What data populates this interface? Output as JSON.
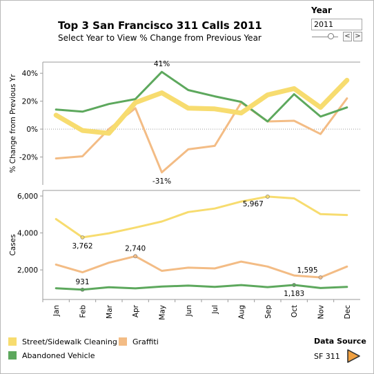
{
  "header": {
    "title": "Top 3 San Francisco 311 Calls 2011",
    "subtitle": "Select Year to View % Change from Previous Year"
  },
  "year_filter": {
    "label": "Year",
    "selected": "2011",
    "prev_label": "<",
    "next_label": ">"
  },
  "legend": {
    "items": [
      {
        "label": "Street/Sidewalk Cleaning",
        "color": "#f7dc6f"
      },
      {
        "label": "Graffiti",
        "color": "#f3bc85"
      },
      {
        "label": "Abandoned Vehicle",
        "color": "#5da85d"
      }
    ]
  },
  "data_source": {
    "title": "Data Source",
    "link_label": "SF 311",
    "play_icon": "play-triangle-icon",
    "play_color": "#f0a040"
  },
  "chart_data": [
    {
      "type": "line",
      "ylabel": "% Change from Previous Yr",
      "ylim": [
        -40,
        48
      ],
      "yticks": [
        -20,
        0,
        20,
        40
      ],
      "ytick_labels": [
        "-20%",
        "0%",
        "20%",
        "40%"
      ],
      "zero_line": "dotted",
      "categories": [
        "Jan",
        "Feb",
        "Mar",
        "Apr",
        "May",
        "Jun",
        "Jul",
        "Aug",
        "Sep",
        "Oct",
        "Nov",
        "Dec"
      ],
      "series": [
        {
          "name": "Graffiti",
          "color": "#f3bc85",
          "values": [
            -21,
            -19.5,
            0,
            15,
            -31,
            -14.5,
            -12,
            19,
            5.5,
            6,
            -3.5,
            22
          ]
        },
        {
          "name": "Abandoned Vehicle",
          "color": "#5da85d",
          "values": [
            14,
            12.5,
            18,
            21.5,
            41,
            28,
            23.5,
            19.5,
            5.5,
            25,
            9,
            15.5
          ]
        },
        {
          "name": "Street/Sidewalk Cleaning",
          "color": "#f7dc6f",
          "values": [
            10,
            -1,
            -3,
            19,
            26,
            15,
            14.5,
            11.5,
            24.5,
            29,
            15.5,
            35
          ]
        }
      ],
      "annotations": [
        {
          "label": "41%",
          "category": "May",
          "value": 41,
          "pos": "above"
        },
        {
          "label": "-31%",
          "category": "May",
          "value": -31,
          "pos": "below"
        }
      ]
    },
    {
      "type": "line",
      "ylabel": "Cases",
      "ylim": [
        400,
        6300
      ],
      "yticks": [
        2000,
        4000,
        6000
      ],
      "ytick_labels": [
        "2,000",
        "4,000",
        "6,000"
      ],
      "categories": [
        "Jan",
        "Feb",
        "Mar",
        "Apr",
        "May",
        "Jun",
        "Jul",
        "Aug",
        "Sep",
        "Oct",
        "Nov",
        "Dec"
      ],
      "series": [
        {
          "name": "Street/Sidewalk Cleaning",
          "color": "#f7dc6f",
          "values": [
            4750,
            3762,
            3980,
            4290,
            4620,
            5130,
            5320,
            5700,
            5967,
            5870,
            5020,
            4970
          ]
        },
        {
          "name": "Graffiti",
          "color": "#f3bc85",
          "values": [
            2290,
            1870,
            2390,
            2740,
            1950,
            2120,
            2080,
            2450,
            2180,
            1700,
            1595,
            2180
          ]
        },
        {
          "name": "Abandoned Vehicle",
          "color": "#5da85d",
          "values": [
            1010,
            931,
            1060,
            1000,
            1100,
            1150,
            1080,
            1180,
            1070,
            1183,
            1020,
            1080
          ]
        }
      ],
      "annotations": [
        {
          "label": "3,762",
          "category": "Feb",
          "value": 3762,
          "pos": "below"
        },
        {
          "label": "5,967",
          "category": "Sep",
          "value": 5967,
          "pos": "below-left"
        },
        {
          "label": "2,740",
          "category": "Apr",
          "value": 2740,
          "pos": "above"
        },
        {
          "label": "1,595",
          "category": "Nov",
          "value": 1595,
          "pos": "above-left"
        },
        {
          "label": "931",
          "category": "Feb",
          "value": 931,
          "pos": "above"
        },
        {
          "label": "1,183",
          "category": "Oct",
          "value": 1183,
          "pos": "below"
        }
      ]
    }
  ]
}
